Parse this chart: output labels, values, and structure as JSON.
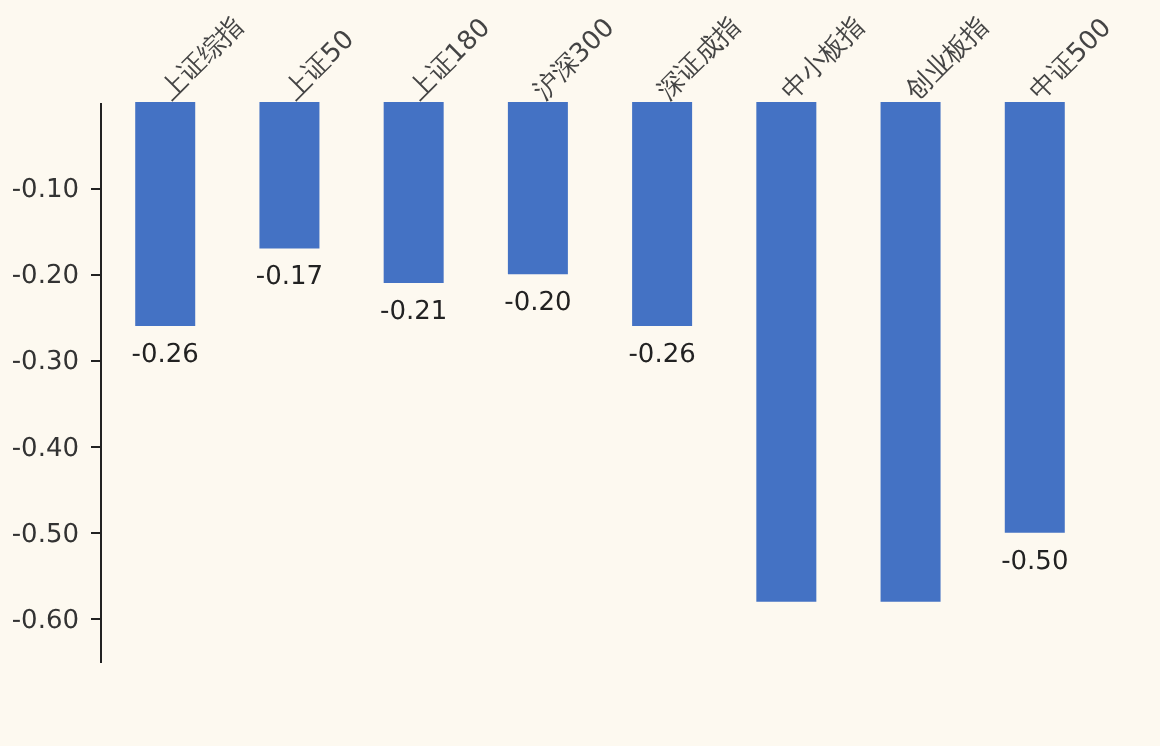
{
  "chart_data": {
    "type": "bar",
    "categories": [
      "上证综指",
      "上证50",
      "上证180",
      "沪深300",
      "深证成指",
      "中小板指",
      "创业板指",
      "中证500"
    ],
    "values": [
      -0.26,
      -0.17,
      -0.21,
      -0.2,
      -0.26,
      -0.58,
      -0.58,
      -0.5
    ],
    "value_labels": [
      "-0.26",
      "-0.17",
      "-0.21",
      "-0.20",
      "-0.26",
      null,
      null,
      "-0.50"
    ],
    "color": "#4472c4",
    "ylim": [
      -0.65,
      0
    ],
    "yticks": [
      {
        "value": -0.1,
        "label": "-0.10"
      },
      {
        "value": -0.2,
        "label": "-0.20"
      },
      {
        "value": -0.3,
        "label": "-0.30"
      },
      {
        "value": -0.4,
        "label": "-0.40"
      },
      {
        "value": -0.5,
        "label": "-0.50"
      },
      {
        "value": -0.6,
        "label": "-0.60"
      }
    ],
    "grid": false
  }
}
